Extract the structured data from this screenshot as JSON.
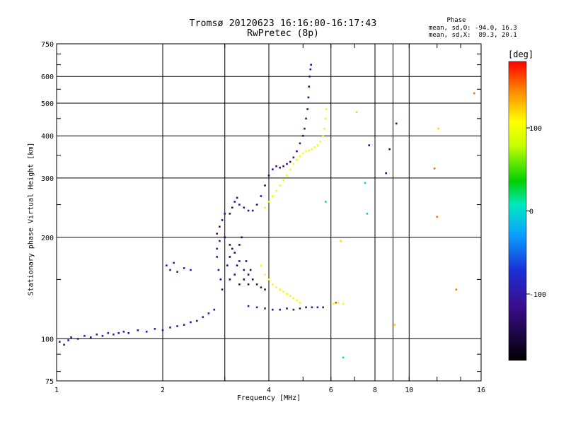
{
  "title_line1": "Tromsø 20120623 16:16:00-16:17:43",
  "title_line2": "RwPretec (8p)",
  "phase_header": "Phase",
  "stat_o": "mean, sd,O: -94.0, 16.3",
  "stat_x": "mean, sd,X:  89.3, 20.1",
  "colorbar_unit": "[deg]",
  "colorbar_ticks": [
    "100",
    "0",
    "-100"
  ],
  "colors": {
    "grid": "#000000",
    "background": "#ffffff"
  },
  "chart_data": {
    "type": "scatter",
    "xlabel": "Frequency [MHz]",
    "ylabel": "Stationary phase Virtual Height [km]",
    "x_scale": "log",
    "y_scale": "log",
    "xlim": [
      1,
      16
    ],
    "ylim": [
      75,
      750
    ],
    "x_ticks": [
      1,
      2,
      4,
      6,
      8,
      10,
      16
    ],
    "x_tick_labels": [
      "1",
      "2",
      "4",
      "6",
      "8",
      "10",
      "16"
    ],
    "y_ticks": [
      75,
      100,
      200,
      300,
      400,
      500,
      600,
      750
    ],
    "y_tick_labels": [
      "75",
      "100",
      "200",
      "300",
      "400",
      "500",
      "600",
      "750"
    ],
    "x_gridlines": [
      2,
      3,
      4,
      6,
      8,
      9,
      10
    ],
    "y_gridlines": [
      100,
      200,
      300,
      400,
      500,
      600
    ],
    "colorbar": {
      "label": "[deg]",
      "range": [
        -180,
        180
      ],
      "ticks": [
        100,
        0,
        -100
      ]
    },
    "traces": [
      {
        "phase": -105,
        "points": [
          [
            1.02,
            98
          ],
          [
            1.05,
            96
          ],
          [
            1.08,
            99
          ],
          [
            1.1,
            101
          ],
          [
            1.15,
            100
          ],
          [
            1.2,
            102
          ],
          [
            1.25,
            101
          ],
          [
            1.3,
            103
          ],
          [
            1.35,
            102
          ],
          [
            1.4,
            104
          ],
          [
            1.45,
            103
          ],
          [
            1.5,
            104
          ],
          [
            1.55,
            105
          ],
          [
            1.6,
            104
          ],
          [
            1.7,
            106
          ],
          [
            1.8,
            105
          ],
          [
            1.9,
            107
          ],
          [
            2.0,
            106
          ],
          [
            2.1,
            108
          ],
          [
            2.2,
            109
          ],
          [
            2.3,
            110
          ],
          [
            2.4,
            112
          ],
          [
            2.5,
            113
          ],
          [
            2.6,
            116
          ],
          [
            2.7,
            119
          ],
          [
            2.8,
            122
          ]
        ]
      },
      {
        "phase": -95,
        "points": [
          [
            2.05,
            165
          ],
          [
            2.1,
            160
          ],
          [
            2.15,
            168
          ],
          [
            2.2,
            158
          ],
          [
            2.3,
            162
          ],
          [
            2.4,
            160
          ]
        ]
      },
      {
        "phase": -110,
        "points": [
          [
            2.85,
            175
          ],
          [
            2.85,
            185
          ],
          [
            2.9,
            195
          ],
          [
            2.85,
            205
          ],
          [
            2.9,
            215
          ],
          [
            2.95,
            225
          ],
          [
            3.0,
            235
          ],
          [
            2.88,
            160
          ],
          [
            2.92,
            150
          ],
          [
            2.95,
            140
          ]
        ]
      },
      {
        "phase": -135,
        "points": [
          [
            3.0,
            200
          ],
          [
            3.1,
            190
          ],
          [
            3.2,
            180
          ],
          [
            3.3,
            170
          ],
          [
            3.4,
            160
          ],
          [
            3.5,
            155
          ],
          [
            3.6,
            150
          ],
          [
            3.7,
            145
          ],
          [
            3.8,
            142
          ],
          [
            3.9,
            140
          ],
          [
            3.1,
            175
          ],
          [
            3.25,
            165
          ],
          [
            3.4,
            150
          ],
          [
            3.5,
            145
          ],
          [
            3.2,
            155
          ],
          [
            3.3,
            145
          ],
          [
            3.1,
            150
          ],
          [
            3.05,
            165
          ],
          [
            3.15,
            185
          ],
          [
            3.3,
            190
          ],
          [
            3.45,
            170
          ],
          [
            3.55,
            160
          ],
          [
            3.35,
            200
          ]
        ]
      },
      {
        "phase": -120,
        "points": [
          [
            3.1,
            235
          ],
          [
            3.15,
            245
          ],
          [
            3.2,
            255
          ],
          [
            3.25,
            262
          ],
          [
            3.3,
            250
          ],
          [
            3.4,
            245
          ],
          [
            3.5,
            240
          ],
          [
            3.6,
            240
          ],
          [
            3.7,
            250
          ],
          [
            3.8,
            265
          ],
          [
            3.9,
            285
          ],
          [
            4.0,
            305
          ],
          [
            4.1,
            318
          ],
          [
            4.2,
            325
          ],
          [
            4.3,
            322
          ],
          [
            4.4,
            325
          ],
          [
            4.5,
            330
          ],
          [
            4.6,
            335
          ],
          [
            4.7,
            345
          ],
          [
            4.8,
            360
          ],
          [
            4.9,
            380
          ],
          [
            5.0,
            400
          ],
          [
            5.05,
            420
          ],
          [
            5.1,
            450
          ],
          [
            5.15,
            480
          ],
          [
            5.18,
            520
          ],
          [
            5.2,
            560
          ],
          [
            5.22,
            600
          ],
          [
            5.25,
            630
          ],
          [
            5.27,
            650
          ]
        ]
      },
      {
        "phase": -105,
        "points": [
          [
            3.5,
            125
          ],
          [
            3.7,
            124
          ],
          [
            3.9,
            123
          ],
          [
            4.1,
            122
          ],
          [
            4.3,
            122
          ],
          [
            4.5,
            123
          ],
          [
            4.7,
            122
          ],
          [
            4.9,
            123
          ],
          [
            5.1,
            124
          ],
          [
            5.3,
            124
          ],
          [
            5.5,
            124
          ],
          [
            5.7,
            124
          ]
        ]
      },
      {
        "phase": 100,
        "points": [
          [
            3.9,
            245
          ],
          [
            4.0,
            255
          ],
          [
            4.1,
            265
          ],
          [
            4.2,
            275
          ],
          [
            4.3,
            285
          ],
          [
            4.4,
            295
          ],
          [
            4.5,
            305
          ],
          [
            4.6,
            318
          ],
          [
            4.7,
            330
          ],
          [
            4.8,
            340
          ],
          [
            4.9,
            348
          ],
          [
            5.0,
            355
          ],
          [
            5.1,
            360
          ],
          [
            5.2,
            362
          ],
          [
            5.3,
            365
          ],
          [
            5.4,
            370
          ],
          [
            5.5,
            375
          ],
          [
            5.6,
            385
          ],
          [
            5.7,
            400
          ],
          [
            5.75,
            420
          ],
          [
            5.8,
            450
          ],
          [
            5.82,
            480
          ]
        ]
      },
      {
        "phase": 110,
        "points": [
          [
            3.8,
            165
          ],
          [
            3.9,
            155
          ],
          [
            4.0,
            150
          ],
          [
            4.1,
            145
          ],
          [
            4.2,
            142
          ],
          [
            4.3,
            140
          ],
          [
            4.4,
            138
          ],
          [
            4.5,
            136
          ],
          [
            4.6,
            134
          ],
          [
            4.7,
            132
          ],
          [
            4.8,
            130
          ],
          [
            4.9,
            128
          ],
          [
            6.1,
            127
          ],
          [
            6.3,
            128
          ],
          [
            6.5,
            127
          ]
        ]
      },
      {
        "phase": 160,
        "points": [
          [
            6.2,
            128
          ]
        ]
      },
      {
        "phase": 0,
        "points": [
          [
            5.8,
            255
          ],
          [
            6.5,
            88
          ],
          [
            7.5,
            290
          ],
          [
            7.6,
            235
          ]
        ]
      },
      {
        "phase": -120,
        "points": [
          [
            7.7,
            375
          ],
          [
            8.6,
            310
          ],
          [
            8.8,
            365
          ],
          [
            9.2,
            435
          ]
        ]
      },
      {
        "phase": 120,
        "points": [
          [
            6.4,
            195
          ],
          [
            7.1,
            470
          ],
          [
            9.1,
            110
          ],
          [
            12.1,
            420
          ]
        ]
      },
      {
        "phase": 150,
        "points": [
          [
            11.8,
            320
          ],
          [
            12.0,
            230
          ],
          [
            13.6,
            140
          ],
          [
            15.3,
            535
          ]
        ]
      }
    ]
  }
}
